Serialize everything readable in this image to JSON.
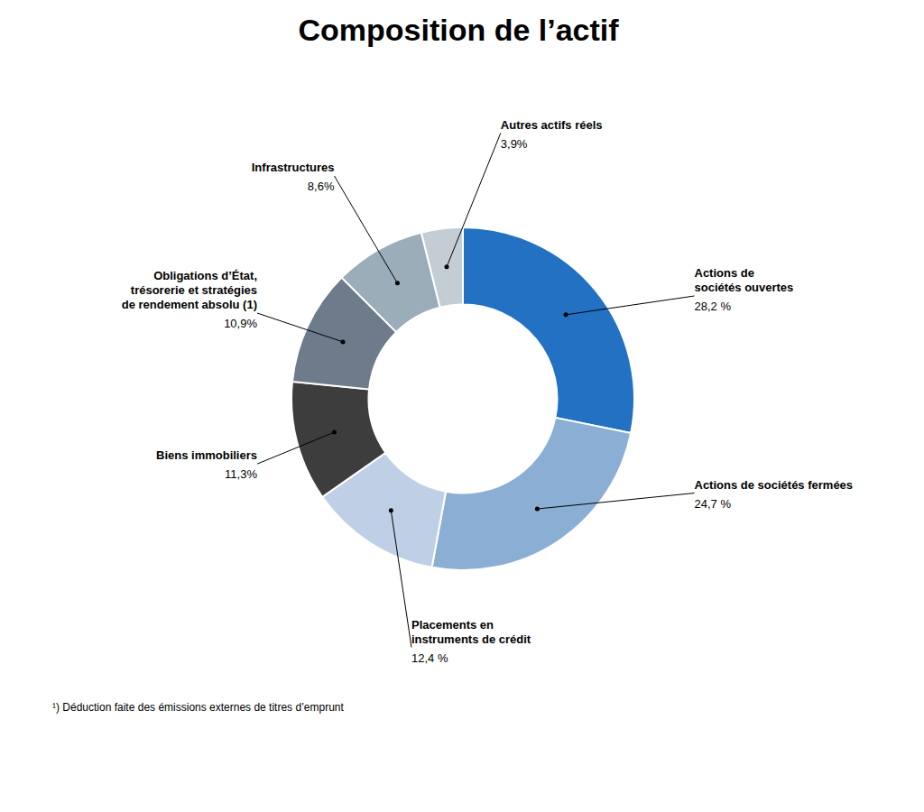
{
  "chart_data": {
    "type": "pie",
    "title": "Composition de l’actif",
    "annotations": [
      "¹) Déduction faite des émissions externes de titres d’emprunt"
    ],
    "categories": [
      "Actions de\nsociétés ouvertes",
      "Actions de sociétés fermées",
      "Placements en\ninstruments de crédit",
      "Biens immobiliers",
      "Obligations d’État,\ntrésorerie et stratégies\nde rendement absolu (1)",
      "Infrastructures",
      "Autres actifs réels"
    ],
    "values": [
      28.2,
      24.7,
      12.4,
      11.3,
      10.9,
      8.6,
      3.9
    ],
    "value_labels": [
      "28,2 %",
      "24,7 %",
      "12,4 %",
      "11,3%",
      "10,9%",
      "8,6%",
      "3,9%"
    ],
    "colors": [
      "#2271C3",
      "#8BAFD4",
      "#BFCFE6",
      "#3D3D3D",
      "#6D7B8A",
      "#9BADB8",
      "#C5CDD4"
    ],
    "data_labels": true
  }
}
